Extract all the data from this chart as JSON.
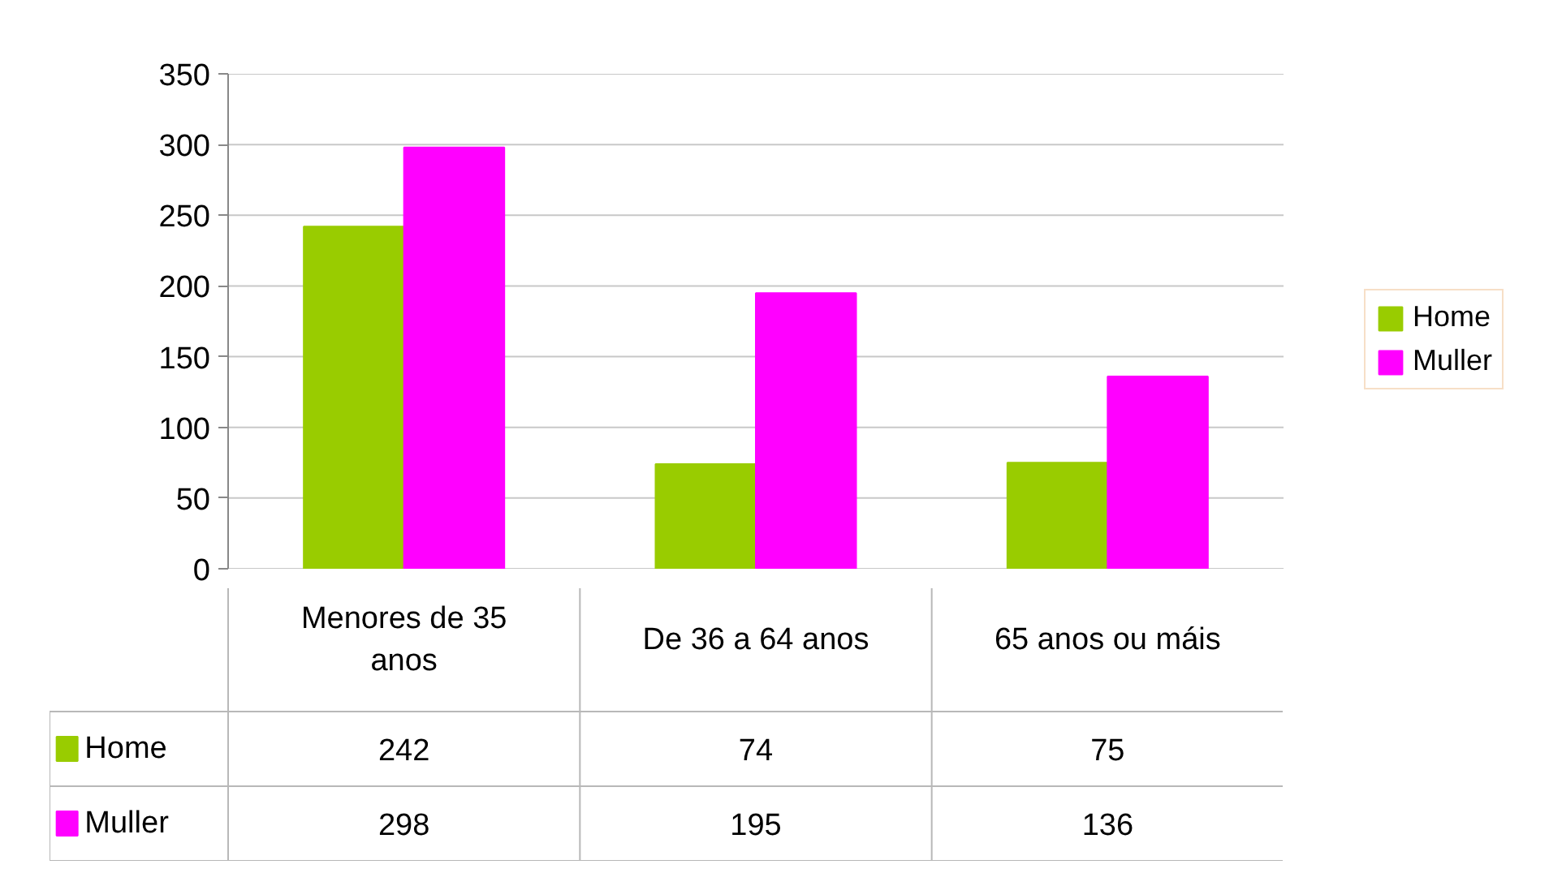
{
  "chart_data": {
    "type": "bar",
    "categories": [
      "Menores de 35 anos",
      "De 36 a 64 anos",
      "65 anos ou máis"
    ],
    "series": [
      {
        "name": "Home",
        "color": "#99cc00",
        "values": [
          242,
          74,
          75
        ]
      },
      {
        "name": "Muller",
        "color": "#ff00ff",
        "values": [
          298,
          195,
          136
        ]
      }
    ],
    "ylim": [
      0,
      350
    ],
    "yticks": [
      0,
      50,
      100,
      150,
      200,
      250,
      300,
      350
    ],
    "grid": "y",
    "legend": "right",
    "data_labels": true
  }
}
